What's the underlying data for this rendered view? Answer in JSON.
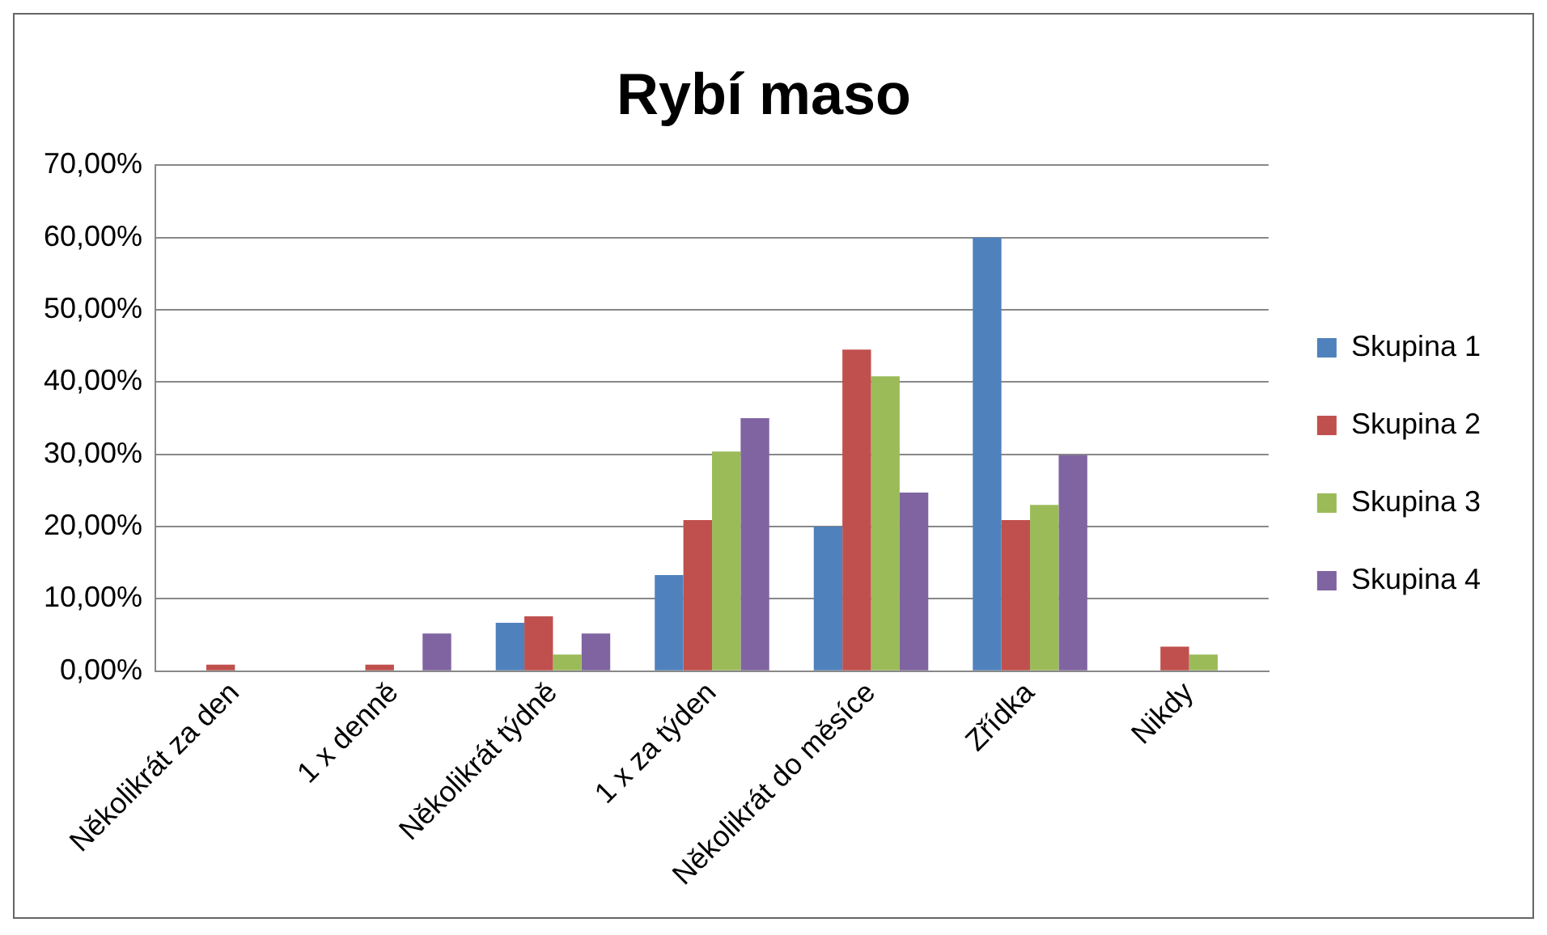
{
  "chart_data": {
    "type": "bar",
    "title": "Rybí maso",
    "categories": [
      "Několikrát za den",
      "1 x denně",
      "Několikrát týdně",
      "1 x za týden",
      "Několikrát do měsíce",
      "Zřídka",
      "Nikdy"
    ],
    "series": [
      {
        "name": "Skupina 1",
        "color": "#4f81bd",
        "values": [
          0,
          0,
          6.7,
          13.3,
          20.0,
          60.0,
          0
        ]
      },
      {
        "name": "Skupina 2",
        "color": "#c0504d",
        "values": [
          0.9,
          0.9,
          7.6,
          20.9,
          44.5,
          20.9,
          3.4
        ]
      },
      {
        "name": "Skupina 3",
        "color": "#9bbb59",
        "values": [
          0,
          0,
          2.3,
          30.4,
          40.8,
          23.0,
          2.3
        ]
      },
      {
        "name": "Skupina 4",
        "color": "#8064a2",
        "values": [
          0,
          5.2,
          5.2,
          35.0,
          24.7,
          29.9,
          0
        ]
      }
    ],
    "ylim": [
      0,
      70
    ],
    "yticks": [
      {
        "value": 0,
        "label": "0,00%"
      },
      {
        "value": 10,
        "label": "10,00%"
      },
      {
        "value": 20,
        "label": "20,00%"
      },
      {
        "value": 30,
        "label": "30,00%"
      },
      {
        "value": 40,
        "label": "40,00%"
      },
      {
        "value": 50,
        "label": "50,00%"
      },
      {
        "value": 60,
        "label": "60,00%"
      },
      {
        "value": 70,
        "label": "70,00%"
      }
    ],
    "grid": "y",
    "legend": "right"
  }
}
